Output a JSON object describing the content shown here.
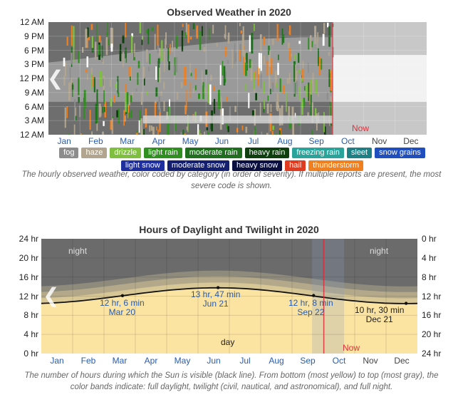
{
  "weather": {
    "title": "Observed Weather in 2020",
    "y_labels": [
      "12 AM",
      "9 PM",
      "6 PM",
      "3 PM",
      "12 PM",
      "9 AM",
      "6 AM",
      "3 AM",
      "12 AM"
    ],
    "months": [
      "Jan",
      "Feb",
      "Mar",
      "Apr",
      "May",
      "Jun",
      "Jul",
      "Aug",
      "Sep",
      "Oct",
      "Nov",
      "Dec"
    ],
    "now_label": "Now",
    "legend": [
      {
        "label": "fog",
        "bg": "#8c8c8c",
        "fg": "#ffffff"
      },
      {
        "label": "haze",
        "bg": "#b1a58f",
        "fg": "#ffffff"
      },
      {
        "label": "drizzle",
        "bg": "#7fbf3f",
        "fg": "#ffffff"
      },
      {
        "label": "light rain",
        "bg": "#2f8f1f",
        "fg": "#ffffff"
      },
      {
        "label": "moderate rain",
        "bg": "#1f6f1f",
        "fg": "#ffffff"
      },
      {
        "label": "heavy rain",
        "bg": "#0f3f0f",
        "fg": "#ffffff"
      },
      {
        "label": "freezing rain",
        "bg": "#2aa39a",
        "fg": "#ffffff"
      },
      {
        "label": "sleet",
        "bg": "#1e7f84",
        "fg": "#ffffff"
      },
      {
        "label": "snow grains",
        "bg": "#1f4fbf",
        "fg": "#ffffff"
      },
      {
        "label": "light snow",
        "bg": "#1f2f9f",
        "fg": "#ffffff"
      },
      {
        "label": "moderate snow",
        "bg": "#14206f",
        "fg": "#ffffff"
      },
      {
        "label": "heavy snow",
        "bg": "#0a0f3f",
        "fg": "#ffffff"
      },
      {
        "label": "hail",
        "bg": "#e03a1f",
        "fg": "#ffffff"
      },
      {
        "label": "thunderstorm",
        "bg": "#f07f1f",
        "fg": "#ffffff"
      }
    ],
    "caption": "The hourly observed weather, color coded by category (in order of severity). If multiple reports are present, the most severe code is shown."
  },
  "daylight": {
    "title": "Hours of Daylight and Twilight in 2020",
    "y_left": [
      "24 hr",
      "20 hr",
      "16 hr",
      "12 hr",
      "8 hr",
      "4 hr",
      "0 hr"
    ],
    "y_right": [
      "0 hr",
      "4 hr",
      "8 hr",
      "12 hr",
      "16 hr",
      "20 hr",
      "24 hr"
    ],
    "months": [
      "Jan",
      "Feb",
      "Mar",
      "Apr",
      "May",
      "Jun",
      "Jul",
      "Aug",
      "Sep",
      "Oct",
      "Nov",
      "Dec"
    ],
    "night_label": "night",
    "day_label": "day",
    "now_label": "Now",
    "annotations": [
      {
        "line1": "12 hr, 6 min",
        "line2": "Mar 20"
      },
      {
        "line1": "13 hr, 47 min",
        "line2": "Jun 21"
      },
      {
        "line1": "12 hr, 8 min",
        "line2": "Sep 22"
      },
      {
        "line1": "10 hr, 30 min",
        "line2": "Dec 21"
      }
    ],
    "caption": "The number of hours during which the Sun is visible (black line). From bottom (most yellow) to top (most gray), the color bands indicate: full daylight, twilight (civil, nautical, and astronomical), and full night."
  },
  "chart_data": [
    {
      "type": "heatmap",
      "title": "Observed Weather in 2020",
      "x_categories": [
        "Jan",
        "Feb",
        "Mar",
        "Apr",
        "May",
        "Jun",
        "Jul",
        "Aug",
        "Sep",
        "Oct",
        "Nov",
        "Dec"
      ],
      "y_ticks": [
        "12 AM",
        "3 AM",
        "6 AM",
        "9 AM",
        "12 PM",
        "3 PM",
        "6 PM",
        "9 PM",
        "12 AM"
      ],
      "categories": [
        "fog",
        "haze",
        "drizzle",
        "light rain",
        "moderate rain",
        "heavy rain",
        "freezing rain",
        "sleet",
        "snow grains",
        "light snow",
        "moderate snow",
        "heavy snow",
        "hail",
        "thunderstorm"
      ],
      "now_marker": "Oct"
    },
    {
      "type": "area",
      "title": "Hours of Daylight and Twilight in 2020",
      "x": [
        "Jan 1",
        "Mar 20",
        "Jun 21",
        "Sep 22",
        "Dec 21",
        "Dec 31"
      ],
      "series": [
        {
          "name": "daylight",
          "values": [
            10.5,
            12.1,
            13.78,
            12.13,
            10.5,
            10.52
          ]
        }
      ],
      "ylim": [
        0,
        24
      ],
      "grid": true,
      "now_marker": "Oct"
    }
  ]
}
